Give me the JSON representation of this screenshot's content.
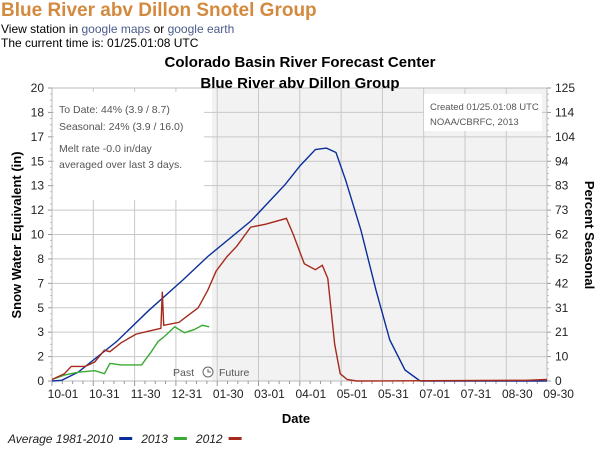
{
  "header": {
    "title": "Blue River abv Dillon Snotel Group",
    "view_prefix": "View station in",
    "maps_link": "google maps",
    "or": "or",
    "earth_link": "google earth",
    "current_time": "The current time is: 01/25.01:08 UTC"
  },
  "chart_data": {
    "type": "line",
    "title": "Colorado Basin River Forecast Center",
    "subtitle": "Blue River abv Dillon Group",
    "xlabel": "Date",
    "ylabel": "Snow Water Equivalent (in)",
    "ylabel_right": "Percent Seasonal",
    "ylim": [
      0,
      20
    ],
    "ylim_right": [
      0,
      125
    ],
    "y_tick_labels": [
      "0",
      "2",
      "3",
      "5",
      "7",
      "8",
      "10",
      "12",
      "13",
      "15",
      "17",
      "18",
      "20"
    ],
    "y_right_tick_labels": [
      "0",
      "10",
      "21",
      "31",
      "42",
      "52",
      "62",
      "73",
      "83",
      "94",
      "104",
      "114",
      "125"
    ],
    "x_tick_labels": [
      "10-01",
      "10-31",
      "11-30",
      "12-31",
      "01-30",
      "03-01",
      "04-01",
      "05-01",
      "05-31",
      "07-01",
      "07-31",
      "08-30",
      "09-30"
    ],
    "grid": true,
    "legend_position": "bottom-left",
    "past_label": "Past",
    "future_label": "Future",
    "current_date": "01-25",
    "stats": {
      "to_date": "To Date: 44% (3.9 / 8.7)",
      "seasonal": "Seasonal: 24% (3.9 / 16.0)",
      "melt_rate": "Melt rate -0.0 in/day",
      "melt_note": "averaged over last 3 days."
    },
    "credit": {
      "created": "Created 01/25.01:08 UTC",
      "org": "NOAA/CBRFC, 2013"
    },
    "series": [
      {
        "name": "Average 1981-2010",
        "color": "#0b2f9a",
        "points": [
          [
            "10-01",
            0
          ],
          [
            "10-08",
            0.05
          ],
          [
            "10-20",
            0.6
          ],
          [
            "11-17",
            2.7
          ],
          [
            "12-10",
            4.8
          ],
          [
            "01-04",
            6.9
          ],
          [
            "01-22",
            8.5
          ],
          [
            "02-22",
            10.9
          ],
          [
            "03-19",
            13.4
          ],
          [
            "03-30",
            14.7
          ],
          [
            "04-10",
            15.8
          ],
          [
            "04-18",
            15.9
          ],
          [
            "04-25",
            15.6
          ],
          [
            "05-02",
            13.7
          ],
          [
            "05-13",
            10.3
          ],
          [
            "05-24",
            6.2
          ],
          [
            "06-03",
            2.8
          ],
          [
            "06-14",
            0.75
          ],
          [
            "06-25",
            0
          ],
          [
            "09-25",
            0
          ]
        ]
      },
      {
        "name": "2013",
        "color": "#3aaa35",
        "points": [
          [
            "10-01",
            0.1
          ],
          [
            "10-10",
            0.4
          ],
          [
            "10-20",
            0.6
          ],
          [
            "11-01",
            0.7
          ],
          [
            "11-08",
            0.5
          ],
          [
            "11-12",
            1.2
          ],
          [
            "11-20",
            1.1
          ],
          [
            "12-05",
            1.1
          ],
          [
            "12-12",
            2.0
          ],
          [
            "12-17",
            2.7
          ],
          [
            "12-21",
            3.0
          ],
          [
            "12-29",
            3.7
          ],
          [
            "01-05",
            3.3
          ],
          [
            "01-12",
            3.5
          ],
          [
            "01-18",
            3.8
          ],
          [
            "01-23",
            3.7
          ]
        ]
      },
      {
        "name": "2012",
        "color": "#a52a1c",
        "points": [
          [
            "10-01",
            0.1
          ],
          [
            "10-10",
            0.5
          ],
          [
            "10-15",
            1.0
          ],
          [
            "10-25",
            1.0
          ],
          [
            "11-01",
            1.3
          ],
          [
            "11-08",
            2.1
          ],
          [
            "11-12",
            2.0
          ],
          [
            "11-20",
            2.6
          ],
          [
            "12-01",
            3.2
          ],
          [
            "12-10",
            3.4
          ],
          [
            "12-19",
            3.6
          ],
          [
            "12-20",
            6.1
          ],
          [
            "12-21",
            3.8
          ],
          [
            "01-01",
            4.0
          ],
          [
            "01-08",
            4.5
          ],
          [
            "01-15",
            5.0
          ],
          [
            "01-22",
            6.2
          ],
          [
            "01-28",
            7.5
          ],
          [
            "02-05",
            8.5
          ],
          [
            "02-12",
            9.2
          ],
          [
            "02-22",
            10.5
          ],
          [
            "03-05",
            10.7
          ],
          [
            "03-20",
            11.1
          ],
          [
            "03-25",
            10.0
          ],
          [
            "04-02",
            8.0
          ],
          [
            "04-10",
            7.6
          ],
          [
            "04-15",
            7.9
          ],
          [
            "04-19",
            7.0
          ],
          [
            "04-24",
            2.5
          ],
          [
            "04-28",
            0.5
          ],
          [
            "05-03",
            0.1
          ],
          [
            "05-10",
            0
          ],
          [
            "09-10",
            0.05
          ],
          [
            "09-25",
            0.1
          ]
        ]
      }
    ]
  }
}
